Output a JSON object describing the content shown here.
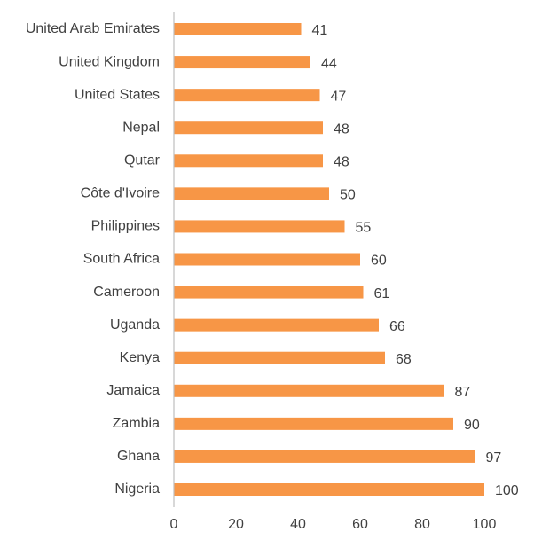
{
  "chart_data": {
    "type": "bar",
    "orientation": "horizontal",
    "categories": [
      "United Arab Emirates",
      "United Kingdom",
      "United States",
      "Nepal",
      "Qutar",
      "Côte d'Ivoire",
      "Philippines",
      "South Africa",
      "Cameroon",
      "Uganda",
      "Kenya",
      "Jamaica",
      "Zambia",
      "Ghana",
      "Nigeria"
    ],
    "values": [
      41,
      44,
      47,
      48,
      48,
      50,
      55,
      60,
      61,
      66,
      68,
      87,
      90,
      97,
      100
    ],
    "xlim": [
      0,
      100
    ],
    "xticks": [
      0,
      20,
      40,
      60,
      80,
      100
    ],
    "bar_color": "#F79646",
    "axis_color": "#bfbfbf",
    "text_color": "#404040",
    "grid": false,
    "legend": "none"
  }
}
